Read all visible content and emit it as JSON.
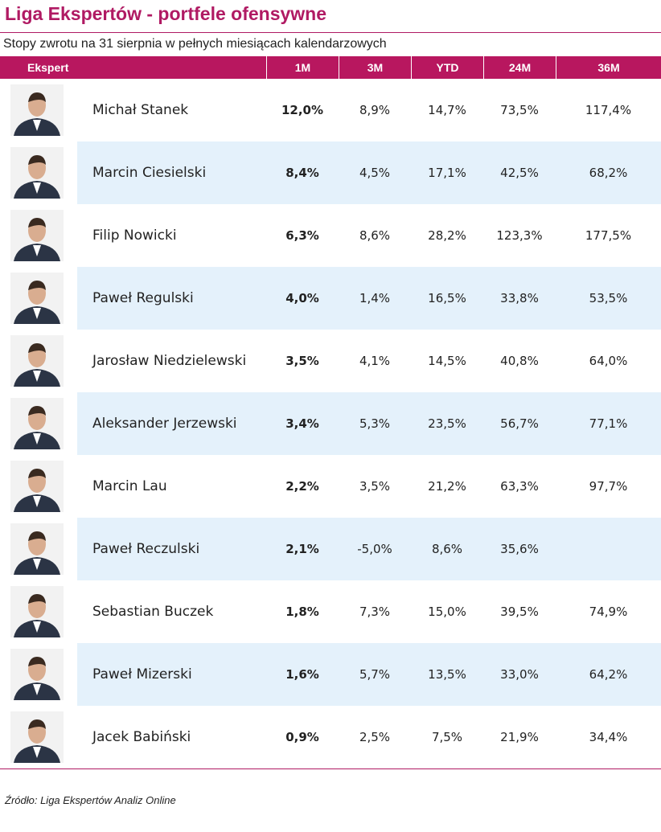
{
  "header": {
    "title": "Liga Ekspertów - portfele ofensywne",
    "subtitle": "Stopy zwrotu na 31 sierpnia w pełnych miesiącach kalendarzowych"
  },
  "table": {
    "columns": [
      "Ekspert",
      "1M",
      "3M",
      "YTD",
      "24M",
      "36M"
    ],
    "rows": [
      [
        "Michał Stanek",
        "12,0%",
        "8,9%",
        "14,7%",
        "73,5%",
        "117,4%"
      ],
      [
        "Marcin Ciesielski",
        "8,4%",
        "4,5%",
        "17,1%",
        "42,5%",
        "68,2%"
      ],
      [
        "Filip Nowicki",
        "6,3%",
        "8,6%",
        "28,2%",
        "123,3%",
        "177,5%"
      ],
      [
        "Paweł Regulski",
        "4,0%",
        "1,4%",
        "16,5%",
        "33,8%",
        "53,5%"
      ],
      [
        "Jarosław Niedzielewski",
        "3,5%",
        "4,1%",
        "14,5%",
        "40,8%",
        "64,0%"
      ],
      [
        "Aleksander Jerzewski",
        "3,4%",
        "5,3%",
        "23,5%",
        "56,7%",
        "77,1%"
      ],
      [
        "Marcin Lau",
        "2,2%",
        "3,5%",
        "21,2%",
        "63,3%",
        "97,7%"
      ],
      [
        "Paweł Reczulski",
        "2,1%",
        "-5,0%",
        "8,6%",
        "35,6%",
        null
      ],
      [
        "Sebastian Buczek",
        "1,8%",
        "7,3%",
        "15,0%",
        "39,5%",
        "74,9%"
      ],
      [
        "Paweł Mizerski",
        "1,6%",
        "5,7%",
        "13,5%",
        "33,0%",
        "64,2%"
      ],
      [
        "Jacek Babiński",
        "0,9%",
        "2,5%",
        "7,5%",
        "21,9%",
        "34,4%"
      ]
    ]
  },
  "footer": {
    "source": "Źródło: Liga Ekspertów Analiz Online"
  }
}
